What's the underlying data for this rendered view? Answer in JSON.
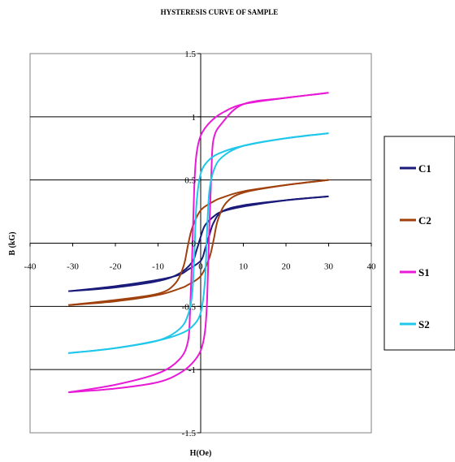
{
  "chart_data": {
    "type": "line",
    "title": "HYSTERESIS CURVE OF SAMPLE",
    "xlabel": "H(Oe)",
    "ylabel": "B (kG)",
    "xlim": [
      -40,
      40
    ],
    "ylim": [
      -1.5,
      1.5
    ],
    "x_ticks": [
      "-40",
      "-30",
      "-20",
      "-10",
      "0",
      "10",
      "20",
      "30",
      "40"
    ],
    "y_ticks": [
      "-1.5",
      "-1",
      "-0.5",
      "0",
      "0.5",
      "1",
      "1.5"
    ],
    "grid": "horizontal",
    "legend_position": "right",
    "series": [
      {
        "name": "C1",
        "color": "#1a1a7a",
        "branch_upper": [
          [
            -31,
            -0.38
          ],
          [
            -20,
            -0.35
          ],
          [
            -10,
            -0.3
          ],
          [
            -5,
            -0.24
          ],
          [
            -2,
            -0.15
          ],
          [
            -1,
            -0.06
          ],
          [
            0,
            0.05
          ],
          [
            1,
            0.14
          ],
          [
            3,
            0.21
          ],
          [
            5,
            0.25
          ],
          [
            10,
            0.29
          ],
          [
            20,
            0.34
          ],
          [
            30,
            0.37
          ]
        ],
        "branch_lower": [
          [
            30,
            0.37
          ],
          [
            20,
            0.34
          ],
          [
            10,
            0.3
          ],
          [
            5,
            0.25
          ],
          [
            3,
            0.16
          ],
          [
            2,
            0.06
          ],
          [
            1,
            -0.05
          ],
          [
            0,
            -0.14
          ],
          [
            -3,
            -0.21
          ],
          [
            -5,
            -0.25
          ],
          [
            -10,
            -0.29
          ],
          [
            -20,
            -0.34
          ],
          [
            -31,
            -0.38
          ]
        ]
      },
      {
        "name": "C2",
        "color": "#a0400c",
        "branch_upper": [
          [
            -31,
            -0.49
          ],
          [
            -20,
            -0.45
          ],
          [
            -10,
            -0.4
          ],
          [
            -6,
            -0.32
          ],
          [
            -4,
            -0.18
          ],
          [
            -3,
            -0.02
          ],
          [
            -2,
            0.12
          ],
          [
            0,
            0.26
          ],
          [
            3,
            0.33
          ],
          [
            5,
            0.36
          ],
          [
            10,
            0.41
          ],
          [
            20,
            0.46
          ],
          [
            30,
            0.5
          ]
        ],
        "branch_lower": [
          [
            30,
            0.5
          ],
          [
            20,
            0.46
          ],
          [
            10,
            0.4
          ],
          [
            6,
            0.32
          ],
          [
            4,
            0.18
          ],
          [
            3,
            0.02
          ],
          [
            2,
            -0.12
          ],
          [
            0,
            -0.26
          ],
          [
            -3,
            -0.33
          ],
          [
            -5,
            -0.36
          ],
          [
            -10,
            -0.41
          ],
          [
            -20,
            -0.46
          ],
          [
            -31,
            -0.49
          ]
        ]
      },
      {
        "name": "S1",
        "color": "#e81ad6",
        "branch_upper": [
          [
            -31,
            -1.18
          ],
          [
            -20,
            -1.12
          ],
          [
            -10,
            -1.03
          ],
          [
            -5,
            -0.92
          ],
          [
            -3,
            -0.78
          ],
          [
            -2.5,
            -0.55
          ],
          [
            -2,
            -0.1
          ],
          [
            -1.5,
            0.45
          ],
          [
            -1,
            0.7
          ],
          [
            0,
            0.85
          ],
          [
            2,
            0.95
          ],
          [
            5,
            1.03
          ],
          [
            10,
            1.1
          ],
          [
            20,
            1.15
          ],
          [
            30,
            1.19
          ]
        ],
        "branch_lower": [
          [
            30,
            1.19
          ],
          [
            20,
            1.15
          ],
          [
            10,
            1.1
          ],
          [
            5,
            0.95
          ],
          [
            3,
            0.82
          ],
          [
            2.5,
            0.55
          ],
          [
            2,
            0.1
          ],
          [
            1.5,
            -0.45
          ],
          [
            1,
            -0.7
          ],
          [
            0,
            -0.85
          ],
          [
            -2,
            -0.95
          ],
          [
            -5,
            -1.03
          ],
          [
            -10,
            -1.1
          ],
          [
            -20,
            -1.15
          ],
          [
            -31,
            -1.18
          ]
        ]
      },
      {
        "name": "S2",
        "color": "#1fc7ea",
        "branch_upper": [
          [
            -31,
            -0.87
          ],
          [
            -20,
            -0.83
          ],
          [
            -10,
            -0.77
          ],
          [
            -5,
            -0.68
          ],
          [
            -3,
            -0.57
          ],
          [
            -2,
            -0.4
          ],
          [
            -1.5,
            -0.1
          ],
          [
            -1,
            0.3
          ],
          [
            0,
            0.55
          ],
          [
            2,
            0.66
          ],
          [
            5,
            0.72
          ],
          [
            10,
            0.77
          ],
          [
            20,
            0.83
          ],
          [
            30,
            0.87
          ]
        ],
        "branch_lower": [
          [
            30,
            0.87
          ],
          [
            20,
            0.83
          ],
          [
            10,
            0.77
          ],
          [
            5,
            0.68
          ],
          [
            3,
            0.57
          ],
          [
            2,
            0.4
          ],
          [
            1.5,
            0.1
          ],
          [
            1,
            -0.3
          ],
          [
            0,
            -0.55
          ],
          [
            -2,
            -0.66
          ],
          [
            -5,
            -0.72
          ],
          [
            -10,
            -0.77
          ],
          [
            -20,
            -0.83
          ],
          [
            -31,
            -0.87
          ]
        ]
      }
    ]
  }
}
